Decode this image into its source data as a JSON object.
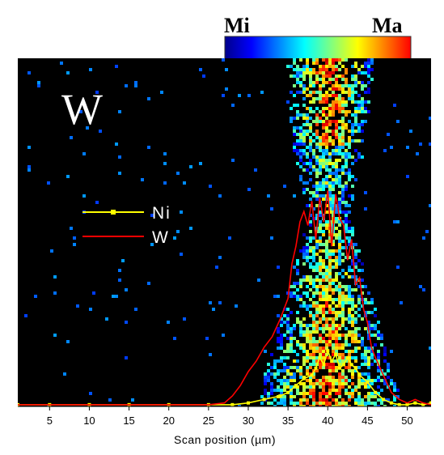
{
  "colorbar": {
    "min_label": "Mi",
    "max_label": "Ma",
    "colors": [
      "#00008b",
      "#0000ff",
      "#0080ff",
      "#00ffff",
      "#80ff80",
      "#ffff00",
      "#ff8000",
      "#ff0000"
    ]
  },
  "chart_data": {
    "type": "line",
    "map_label": "W",
    "xlabel": "Scan position (µm)",
    "ylabel": "",
    "xlim": [
      1,
      53
    ],
    "ylim": [
      0,
      100
    ],
    "xticks": [
      5,
      10,
      15,
      20,
      25,
      30,
      35,
      40,
      45,
      50
    ],
    "tick_labels": [
      "5",
      "10",
      "15",
      "20",
      "25",
      "30",
      "35",
      "40",
      "45",
      "50"
    ],
    "background_color": "#000000",
    "legend": {
      "placement": "left-middle"
    },
    "series": [
      {
        "name": "Ni",
        "color": "#ffff00",
        "marker": "square",
        "x": [
          1,
          5,
          10,
          15,
          20,
          25,
          28,
          30,
          32,
          34,
          35,
          36,
          37,
          38,
          38.5,
          39,
          39.5,
          40,
          40.5,
          41,
          41.5,
          42,
          42.5,
          43,
          43.5,
          44,
          45,
          46,
          47,
          48,
          49,
          50,
          51,
          52,
          53
        ],
        "y": [
          0.5,
          0.5,
          0.5,
          0.5,
          0.5,
          0.5,
          0.5,
          1,
          2,
          3,
          4,
          6,
          8,
          9,
          11,
          14,
          12,
          16,
          13,
          15,
          11,
          12,
          14,
          12,
          11,
          9,
          7,
          4,
          2,
          1,
          0.5,
          0.5,
          1,
          0.5,
          1
        ]
      },
      {
        "name": "W",
        "color": "#ff0000",
        "marker": "none",
        "x": [
          1,
          5,
          10,
          15,
          20,
          25,
          27,
          28,
          29,
          30,
          31,
          32,
          33,
          34,
          35,
          35.5,
          36,
          36.5,
          37,
          37.5,
          38,
          38.5,
          39,
          39.5,
          40,
          40.5,
          41,
          41.5,
          42,
          42.5,
          43,
          43.5,
          44,
          44.5,
          45,
          45.5,
          46,
          47,
          48,
          49,
          50,
          51,
          52,
          53
        ],
        "y": [
          0.5,
          0.5,
          0.5,
          0.5,
          0.5,
          0.5,
          1,
          3,
          6,
          10,
          13,
          17,
          20,
          25,
          31,
          41,
          46,
          53,
          56,
          52,
          59,
          48,
          60,
          53,
          62,
          46,
          61,
          54,
          52,
          42,
          48,
          35,
          37,
          28,
          24,
          17,
          14,
          9,
          4,
          2,
          1,
          2,
          1,
          0.5
        ]
      }
    ],
    "intensity_map": {
      "description_free": true,
      "center_x": 40,
      "cmap": "jet"
    }
  }
}
